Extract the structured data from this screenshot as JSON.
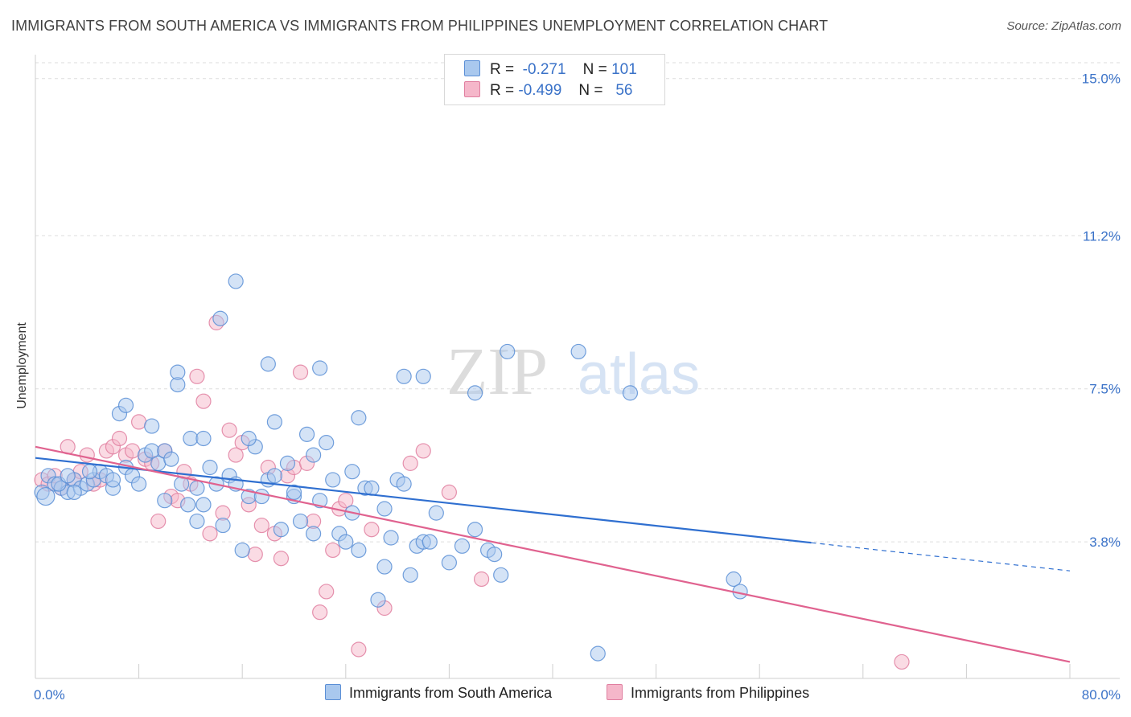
{
  "title": "IMMIGRANTS FROM SOUTH AMERICA VS IMMIGRANTS FROM PHILIPPINES UNEMPLOYMENT CORRELATION CHART",
  "source": "Source: ZipAtlas.com",
  "watermark": {
    "zip": "ZIP",
    "atlas": "atlas"
  },
  "legend": {
    "rows": [
      {
        "r_label": "R =",
        "r_value": "-0.271",
        "n_label": "N =",
        "n_value": "101"
      },
      {
        "r_label": "R =",
        "r_value": "-0.499",
        "n_label": "N =",
        "n_value": "56"
      }
    ]
  },
  "colors": {
    "blue_fill": "#a9c8ee",
    "blue_stroke": "#5b8fd6",
    "blue_line": "#2f6fd0",
    "pink_fill": "#f5b7ca",
    "pink_stroke": "#e07fa0",
    "pink_line": "#e0628f",
    "grid": "#dddddd",
    "tick": "#3a72c8"
  },
  "chart_data": {
    "type": "scatter",
    "title": "IMMIGRANTS FROM SOUTH AMERICA VS IMMIGRANTS FROM PHILIPPINES UNEMPLOYMENT CORRELATION CHART",
    "xlabel": "",
    "ylabel": "Unemployment",
    "xlim": [
      0,
      80
    ],
    "ylim": [
      0.5,
      15.5
    ],
    "x_tick_labels": [
      "0.0%",
      "80.0%"
    ],
    "y_ticks": [
      3.8,
      7.5,
      11.2,
      15.0
    ],
    "y_tick_labels": [
      "3.8%",
      "7.5%",
      "11.2%",
      "15.0%"
    ],
    "grid": true,
    "legend_position": "top-center",
    "series": [
      {
        "name": "Immigrants from South America",
        "color": "blue",
        "trend": {
          "x": [
            0,
            60
          ],
          "y": [
            5.83,
            3.78
          ],
          "dashed_extension_to": [
            80,
            3.1
          ]
        },
        "points": [
          [
            0.5,
            5.0
          ],
          [
            0.8,
            4.9
          ],
          [
            1.0,
            5.4
          ],
          [
            1.5,
            5.2
          ],
          [
            2.0,
            5.1
          ],
          [
            2.5,
            5.0
          ],
          [
            3.0,
            5.3
          ],
          [
            3.5,
            5.1
          ],
          [
            4.0,
            5.2
          ],
          [
            4.5,
            5.3
          ],
          [
            5.0,
            5.5
          ],
          [
            5.5,
            5.4
          ],
          [
            6.0,
            5.1
          ],
          [
            6.5,
            6.9
          ],
          [
            7.0,
            5.6
          ],
          [
            7.5,
            5.4
          ],
          [
            8.0,
            5.2
          ],
          [
            8.5,
            5.9
          ],
          [
            9.0,
            6.0
          ],
          [
            9.5,
            5.7
          ],
          [
            10.0,
            6.0
          ],
          [
            10.5,
            5.8
          ],
          [
            11.0,
            7.6
          ],
          [
            11.3,
            5.2
          ],
          [
            11.8,
            4.7
          ],
          [
            12.0,
            6.3
          ],
          [
            12.5,
            5.1
          ],
          [
            13.0,
            4.7
          ],
          [
            13.5,
            5.6
          ],
          [
            14.0,
            5.2
          ],
          [
            14.5,
            4.2
          ],
          [
            15.0,
            5.4
          ],
          [
            15.5,
            5.2
          ],
          [
            16.0,
            3.6
          ],
          [
            16.5,
            4.9
          ],
          [
            17.0,
            6.1
          ],
          [
            17.5,
            4.9
          ],
          [
            18.0,
            5.3
          ],
          [
            18.5,
            6.7
          ],
          [
            19.0,
            4.1
          ],
          [
            19.5,
            5.7
          ],
          [
            20.0,
            4.9
          ],
          [
            20.5,
            4.3
          ],
          [
            21.0,
            6.4
          ],
          [
            21.5,
            5.9
          ],
          [
            22.0,
            4.8
          ],
          [
            22.5,
            6.2
          ],
          [
            23.0,
            5.3
          ],
          [
            23.5,
            4.0
          ],
          [
            24.0,
            3.8
          ],
          [
            24.5,
            5.5
          ],
          [
            25.0,
            3.6
          ],
          [
            25.5,
            5.1
          ],
          [
            26.0,
            5.1
          ],
          [
            26.5,
            2.4
          ],
          [
            27.0,
            4.6
          ],
          [
            27.5,
            3.9
          ],
          [
            28.0,
            5.3
          ],
          [
            28.5,
            5.2
          ],
          [
            29.0,
            3.0
          ],
          [
            29.5,
            3.7
          ],
          [
            30.0,
            3.8
          ],
          [
            30.5,
            3.8
          ],
          [
            31.0,
            4.5
          ],
          [
            32.0,
            3.3
          ],
          [
            33.0,
            3.7
          ],
          [
            34.0,
            4.1
          ],
          [
            35.0,
            3.6
          ],
          [
            36.0,
            3.0
          ],
          [
            36.5,
            8.4
          ],
          [
            42.0,
            8.4
          ],
          [
            46.0,
            7.4
          ],
          [
            54.0,
            2.9
          ],
          [
            54.5,
            2.6
          ],
          [
            43.5,
            1.1
          ],
          [
            15.5,
            10.1
          ],
          [
            14.3,
            9.2
          ],
          [
            18.0,
            8.1
          ],
          [
            22.0,
            8.0
          ],
          [
            11.0,
            7.9
          ],
          [
            7.0,
            7.1
          ],
          [
            9.0,
            6.6
          ],
          [
            13.0,
            6.3
          ],
          [
            28.5,
            7.8
          ],
          [
            25.0,
            6.8
          ],
          [
            16.5,
            6.3
          ],
          [
            18.5,
            5.4
          ],
          [
            20.0,
            5.0
          ],
          [
            34.0,
            7.4
          ],
          [
            30.0,
            7.8
          ],
          [
            35.5,
            3.5
          ],
          [
            27.0,
            3.2
          ],
          [
            10.0,
            4.8
          ],
          [
            21.5,
            4.0
          ],
          [
            24.5,
            4.5
          ],
          [
            12.5,
            4.3
          ],
          [
            6.0,
            5.3
          ],
          [
            3.0,
            5.0
          ],
          [
            1.8,
            5.2
          ],
          [
            4.2,
            5.5
          ],
          [
            2.5,
            5.4
          ]
        ]
      },
      {
        "name": "Immigrants from Philippines",
        "color": "pink",
        "trend": {
          "x": [
            0,
            80
          ],
          "y": [
            6.1,
            0.9
          ]
        },
        "points": [
          [
            0.5,
            5.3
          ],
          [
            1.0,
            5.2
          ],
          [
            1.5,
            5.4
          ],
          [
            2.0,
            5.1
          ],
          [
            2.5,
            6.1
          ],
          [
            3.0,
            5.3
          ],
          [
            3.5,
            5.5
          ],
          [
            4.0,
            5.9
          ],
          [
            4.5,
            5.2
          ],
          [
            5.0,
            5.3
          ],
          [
            5.5,
            6.0
          ],
          [
            6.0,
            6.1
          ],
          [
            6.5,
            6.3
          ],
          [
            7.0,
            5.9
          ],
          [
            7.5,
            6.0
          ],
          [
            8.0,
            6.7
          ],
          [
            8.5,
            5.8
          ],
          [
            9.0,
            5.7
          ],
          [
            9.5,
            4.3
          ],
          [
            10.0,
            6.0
          ],
          [
            10.5,
            4.9
          ],
          [
            11.0,
            4.8
          ],
          [
            11.5,
            5.5
          ],
          [
            12.0,
            5.2
          ],
          [
            12.5,
            7.8
          ],
          [
            13.0,
            7.2
          ],
          [
            13.5,
            4.0
          ],
          [
            14.0,
            9.1
          ],
          [
            14.5,
            4.5
          ],
          [
            15.0,
            6.5
          ],
          [
            15.5,
            5.9
          ],
          [
            16.0,
            6.2
          ],
          [
            16.5,
            4.7
          ],
          [
            17.0,
            3.5
          ],
          [
            17.5,
            4.2
          ],
          [
            18.0,
            5.6
          ],
          [
            18.5,
            4.0
          ],
          [
            19.0,
            3.4
          ],
          [
            19.5,
            5.4
          ],
          [
            20.0,
            5.6
          ],
          [
            20.5,
            7.9
          ],
          [
            21.0,
            5.7
          ],
          [
            21.5,
            4.3
          ],
          [
            22.0,
            2.1
          ],
          [
            22.5,
            2.6
          ],
          [
            23.0,
            3.6
          ],
          [
            23.5,
            4.6
          ],
          [
            24.0,
            4.8
          ],
          [
            25.0,
            1.2
          ],
          [
            26.0,
            4.1
          ],
          [
            27.0,
            2.2
          ],
          [
            29.0,
            5.7
          ],
          [
            30.0,
            6.0
          ],
          [
            32.0,
            5.0
          ],
          [
            34.5,
            2.9
          ],
          [
            67.0,
            0.9
          ]
        ]
      }
    ]
  },
  "bottom_legend": [
    "Immigrants from South America",
    "Immigrants from Philippines"
  ]
}
